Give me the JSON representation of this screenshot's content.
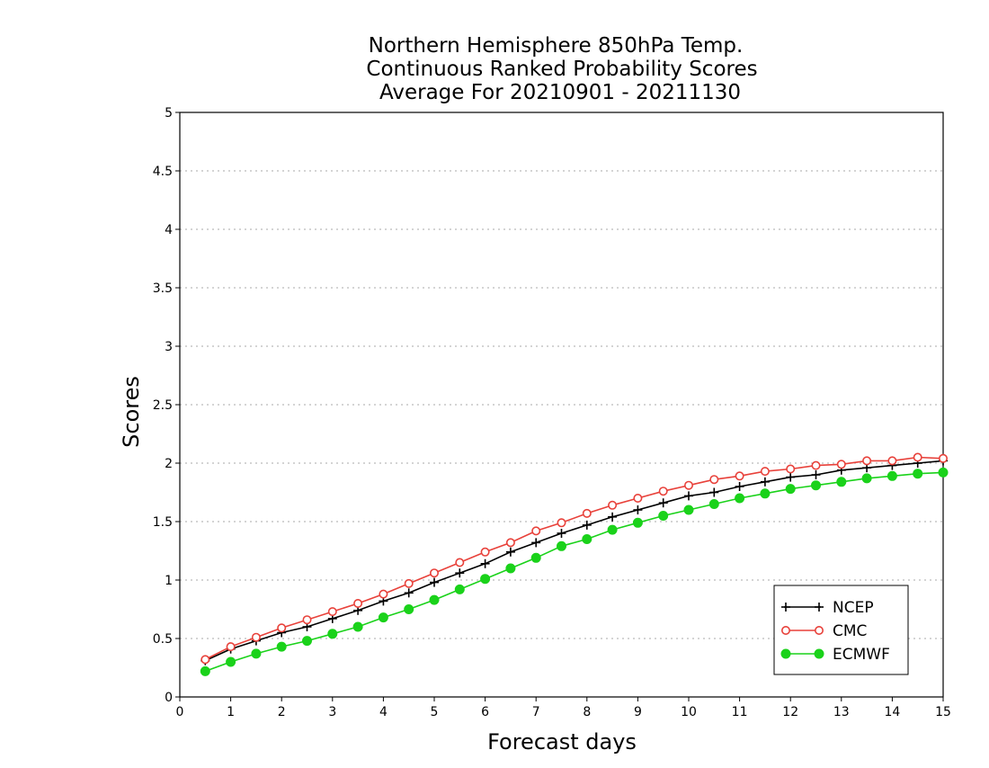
{
  "chart_data": {
    "type": "line",
    "title_lines": [
      "Northern Hemisphere 850hPa Temp.",
      "Continuous Ranked Probability Scores",
      "Average For 20210901 - 20211130"
    ],
    "xlabel": "Forecast days",
    "ylabel": "Scores",
    "xlim": [
      0,
      15
    ],
    "ylim": [
      0,
      5
    ],
    "x_ticks": [
      "0",
      "1",
      "2",
      "3",
      "4",
      "5",
      "6",
      "7",
      "8",
      "9",
      "10",
      "11",
      "12",
      "13",
      "14",
      "15"
    ],
    "y_ticks": [
      "0",
      "0.5",
      "1",
      "1.5",
      "2",
      "2.5",
      "3",
      "3.5",
      "4",
      "4.5",
      "5"
    ],
    "grid": true,
    "legend_position": "bottom-right",
    "x": [
      0.5,
      1,
      1.5,
      2,
      2.5,
      3,
      3.5,
      4,
      4.5,
      5,
      5.5,
      6,
      6.5,
      7,
      7.5,
      8,
      8.5,
      9,
      9.5,
      10,
      10.5,
      11,
      11.5,
      12,
      12.5,
      13,
      13.5,
      14,
      14.5,
      15
    ],
    "series": [
      {
        "name": "NCEP",
        "color": "#000000",
        "marker": "plus",
        "values": [
          0.31,
          0.41,
          0.48,
          0.55,
          0.6,
          0.67,
          0.74,
          0.82,
          0.89,
          0.98,
          1.06,
          1.14,
          1.24,
          1.32,
          1.4,
          1.47,
          1.54,
          1.6,
          1.66,
          1.72,
          1.75,
          1.8,
          1.84,
          1.88,
          1.9,
          1.94,
          1.96,
          1.98,
          2.0,
          2.02
        ]
      },
      {
        "name": "CMC",
        "color": "#e8413a",
        "marker": "open-circle",
        "values": [
          0.32,
          0.43,
          0.51,
          0.59,
          0.66,
          0.73,
          0.8,
          0.88,
          0.97,
          1.06,
          1.15,
          1.24,
          1.32,
          1.42,
          1.49,
          1.57,
          1.64,
          1.7,
          1.76,
          1.81,
          1.86,
          1.89,
          1.93,
          1.95,
          1.98,
          1.99,
          2.02,
          2.02,
          2.05,
          2.04
        ]
      },
      {
        "name": "ECMWF",
        "color": "#1ad21a",
        "marker": "filled-circle",
        "values": [
          0.22,
          0.3,
          0.37,
          0.43,
          0.48,
          0.54,
          0.6,
          0.68,
          0.75,
          0.83,
          0.92,
          1.01,
          1.1,
          1.19,
          1.29,
          1.35,
          1.43,
          1.49,
          1.55,
          1.6,
          1.65,
          1.7,
          1.74,
          1.78,
          1.81,
          1.84,
          1.87,
          1.89,
          1.91,
          1.92
        ]
      }
    ]
  }
}
